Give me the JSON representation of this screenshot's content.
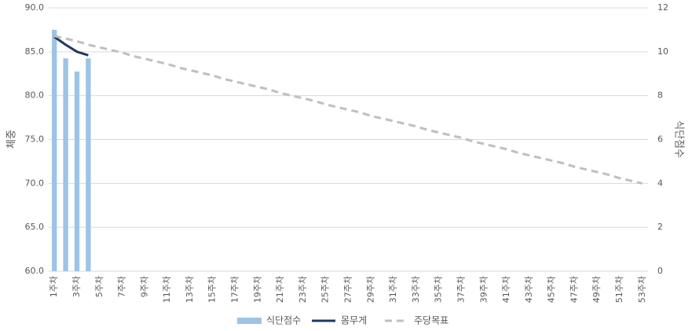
{
  "chart_data": {
    "type": "combo",
    "y_label": "체중",
    "y2_label": "식단점수",
    "categories": [
      "1주차",
      null,
      "3주차",
      null,
      "5주차",
      null,
      "7주차",
      null,
      "9주차",
      null,
      "11주차",
      null,
      "13주차",
      null,
      "15주차",
      null,
      "17주차",
      null,
      "19주차",
      null,
      "21주차",
      null,
      "23주차",
      null,
      "25주차",
      null,
      "27주차",
      null,
      "29주차",
      null,
      "31주차",
      null,
      "33주차",
      null,
      "35주차",
      null,
      "37주차",
      null,
      "39주차",
      null,
      "41주차",
      null,
      "43주차",
      null,
      "45주차",
      null,
      "47주차",
      null,
      "49주차",
      null,
      "51주차",
      null,
      "53주차"
    ],
    "ylim": [
      60,
      90
    ],
    "yticks": [
      {
        "value": 60,
        "label": "60.0"
      },
      {
        "value": 65,
        "label": "65.0"
      },
      {
        "value": 70,
        "label": "70.0"
      },
      {
        "value": 75,
        "label": "75.0"
      },
      {
        "value": 80,
        "label": "80.0"
      },
      {
        "value": 85,
        "label": "85.0"
      },
      {
        "value": 90,
        "label": "90.0"
      }
    ],
    "y2lim": [
      0,
      12
    ],
    "y2ticks": [
      0,
      2,
      4,
      6,
      8,
      10,
      12
    ],
    "grid": true,
    "legend": "bottom",
    "series": [
      {
        "name": "식단점수",
        "type": "bar",
        "axis": "y2",
        "color": "#9dc3e6",
        "values": [
          11.0,
          9.7,
          9.1,
          9.7,
          null,
          null,
          null,
          null,
          null,
          null,
          null,
          null,
          null,
          null,
          null,
          null,
          null,
          null,
          null,
          null,
          null,
          null,
          null,
          null,
          null,
          null,
          null,
          null,
          null,
          null,
          null,
          null,
          null,
          null,
          null,
          null,
          null,
          null,
          null,
          null,
          null,
          null,
          null,
          null,
          null,
          null,
          null,
          null,
          null,
          null,
          null,
          null,
          null
        ]
      },
      {
        "name": "몸무게",
        "type": "line",
        "color": "#203864",
        "values": [
          86.7,
          85.8,
          85.0,
          84.6,
          null,
          null,
          null,
          null,
          null,
          null,
          null,
          null,
          null,
          null,
          null,
          null,
          null,
          null,
          null,
          null,
          null,
          null,
          null,
          null,
          null,
          null,
          null,
          null,
          null,
          null,
          null,
          null,
          null,
          null,
          null,
          null,
          null,
          null,
          null,
          null,
          null,
          null,
          null,
          null,
          null,
          null,
          null,
          null,
          null,
          null,
          null,
          null,
          null
        ]
      },
      {
        "name": "주당목표",
        "type": "dashed",
        "color": "#bfbfbf",
        "values": [
          86.8,
          86.5,
          86.2,
          85.8,
          85.5,
          85.2,
          84.9,
          84.5,
          84.2,
          83.9,
          83.6,
          83.2,
          82.9,
          82.6,
          82.3,
          81.9,
          81.6,
          81.3,
          81.0,
          80.7,
          80.3,
          80.0,
          79.7,
          79.4,
          79.0,
          78.7,
          78.4,
          78.1,
          77.7,
          77.4,
          77.1,
          76.8,
          76.5,
          76.1,
          75.8,
          75.5,
          75.2,
          74.8,
          74.5,
          74.2,
          73.9,
          73.5,
          73.2,
          72.9,
          72.6,
          72.3,
          71.9,
          71.6,
          71.3,
          71.0,
          70.6,
          70.3,
          70.0
        ]
      }
    ]
  }
}
